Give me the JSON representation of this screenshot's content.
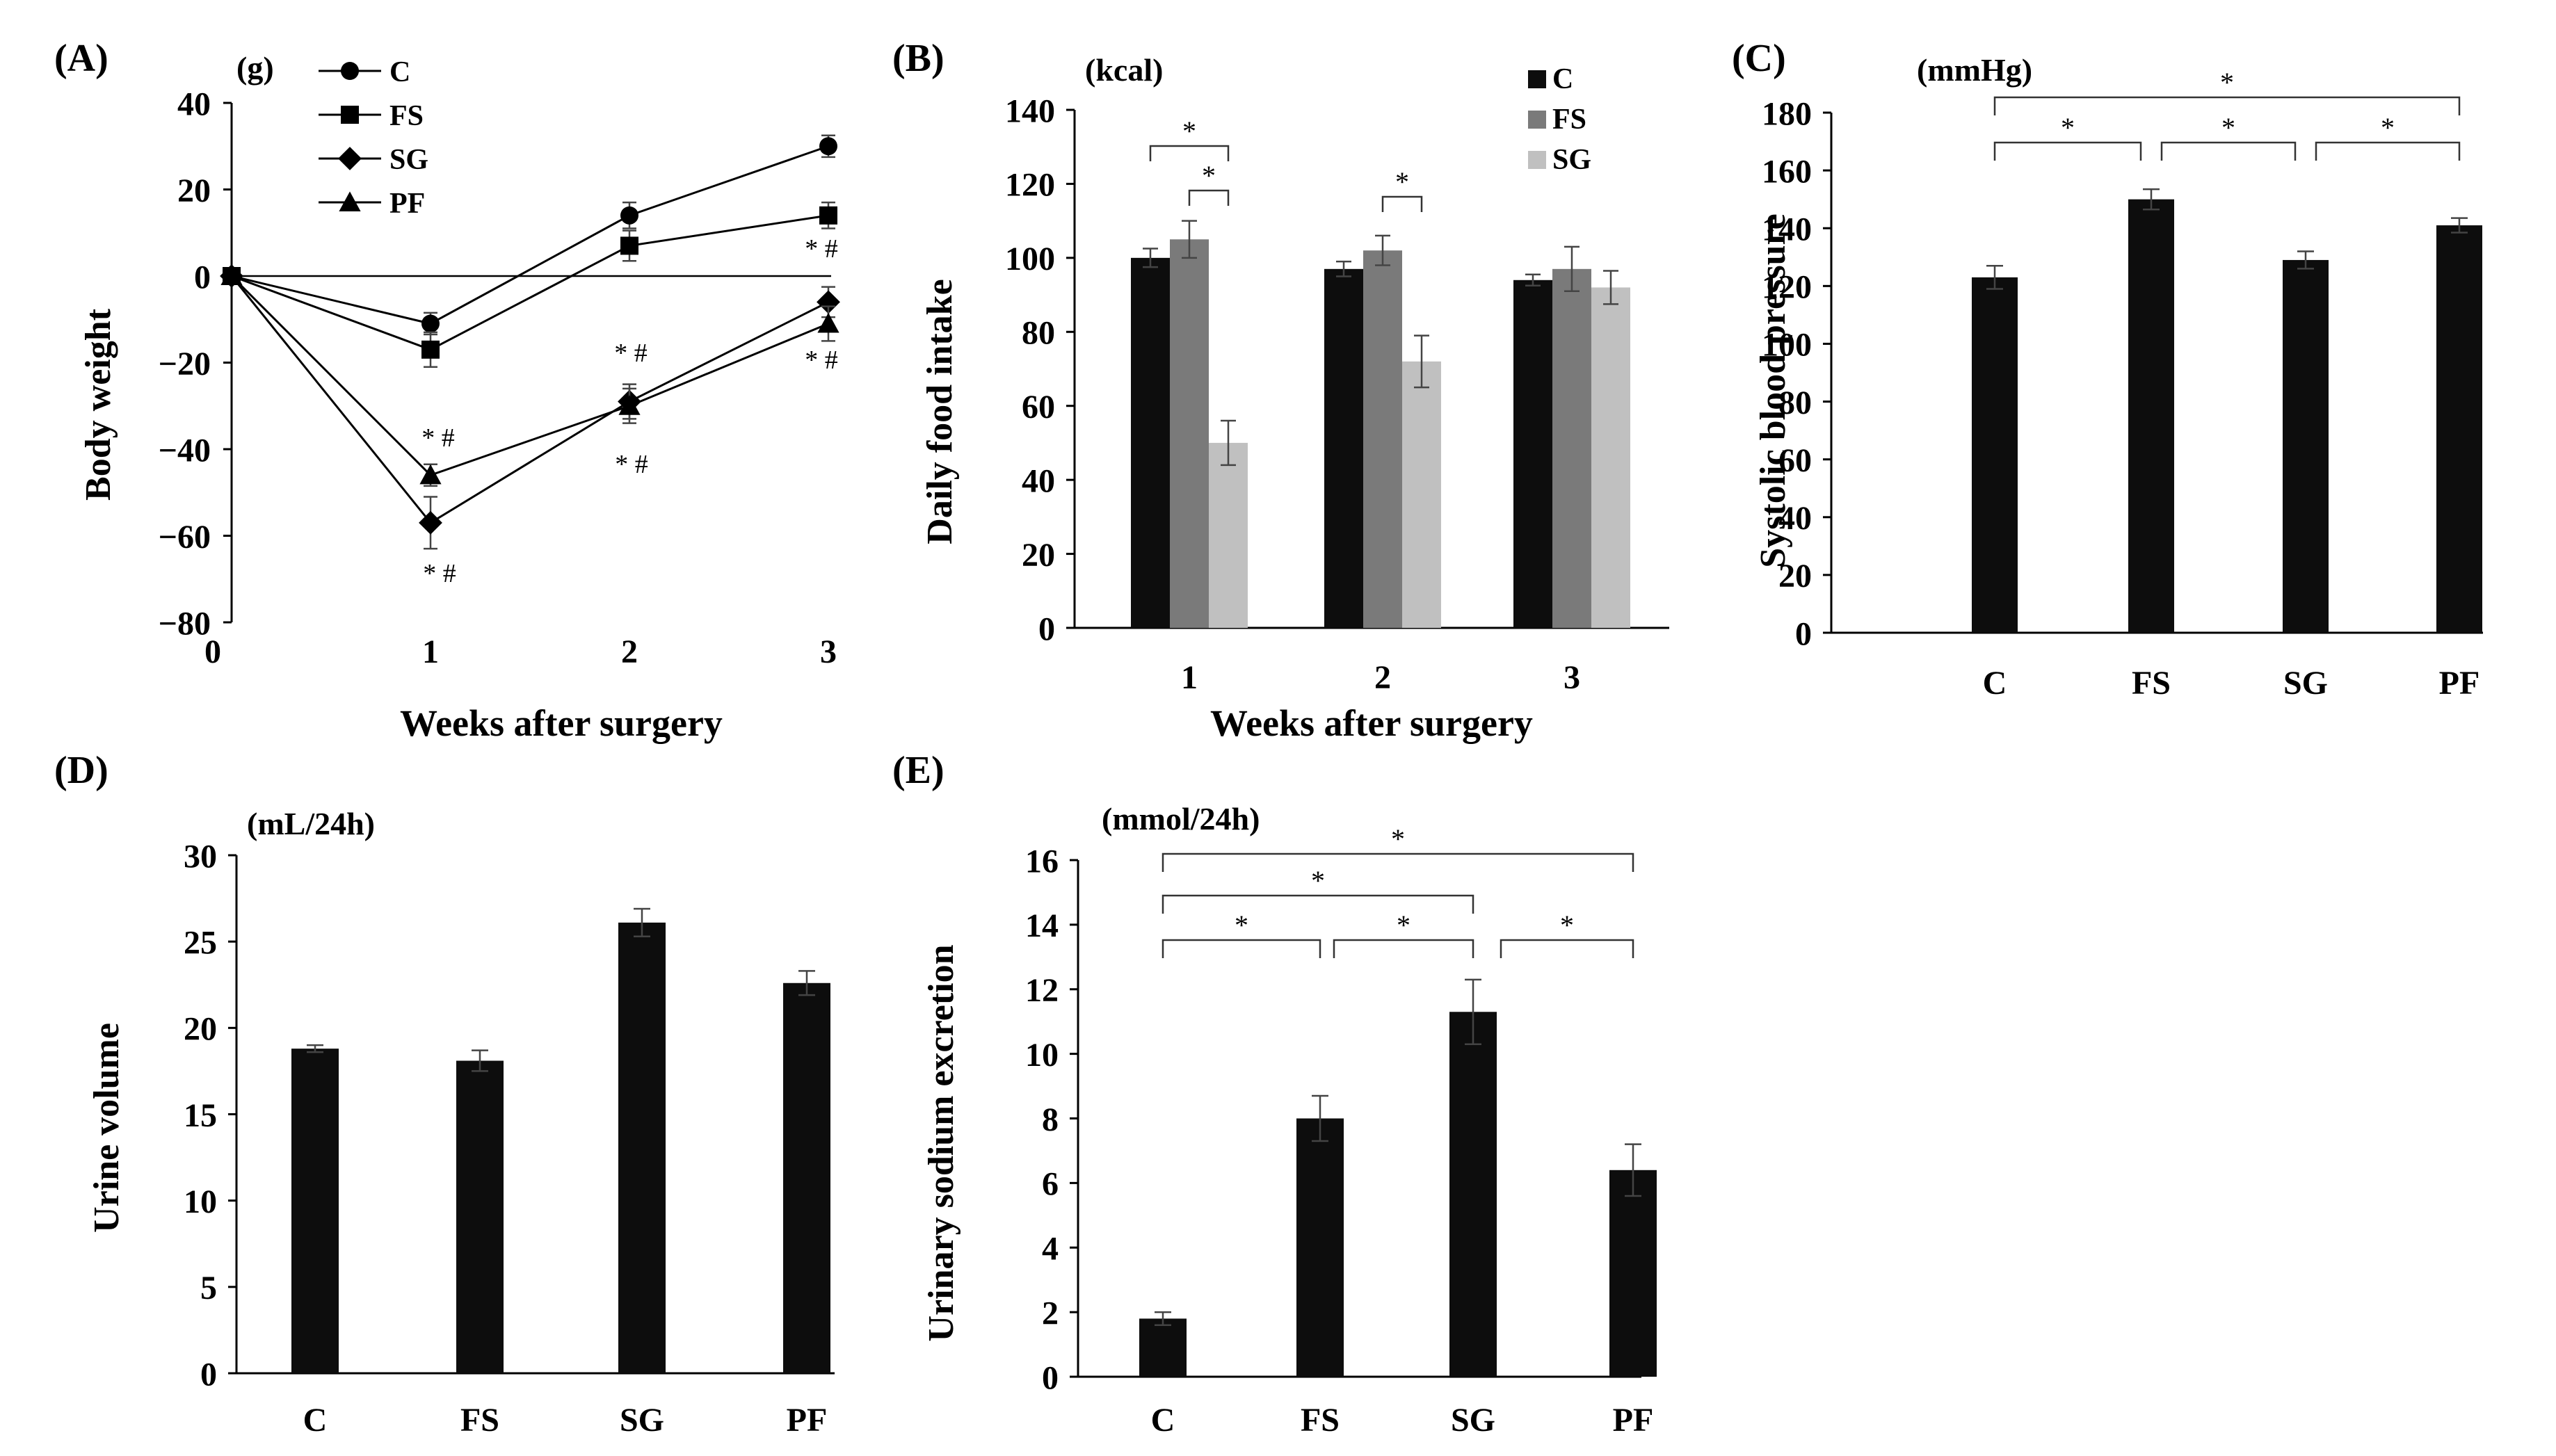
{
  "panels": {
    "A": {
      "letter": "(A)",
      "unit": "(g)",
      "ylabel": "Body weight",
      "xlabel": "Weeks after surgery"
    },
    "B": {
      "letter": "(B)",
      "unit": "(kcal)",
      "ylabel": "Daily food intake",
      "xlabel": "Weeks after surgery"
    },
    "C": {
      "letter": "(C)",
      "unit": "(mmHg)",
      "ylabel": "Systolic blood pressure"
    },
    "D": {
      "letter": "(D)",
      "unit": "(mL/24h)",
      "ylabel": "Urine volume"
    },
    "E": {
      "letter": "(E)",
      "unit": "(mmol/24h)",
      "ylabel": "Urinary sodium excretion"
    }
  },
  "chart_data": [
    {
      "panel": "A",
      "type": "line",
      "title": "",
      "xlabel": "Weeks after surgery",
      "ylabel": "Body weight",
      "unit": "(g)",
      "x": [
        0,
        1,
        2,
        3
      ],
      "xlim": [
        0,
        3
      ],
      "ylim": [
        -80,
        40
      ],
      "yticks": [
        -80,
        -60,
        -40,
        -20,
        0,
        20,
        40
      ],
      "xtick_labels": [
        "0",
        "1",
        "2",
        "3"
      ],
      "legend_position": "top-left",
      "series": [
        {
          "name": "C",
          "marker": "circle",
          "values": [
            0,
            -11,
            14,
            30
          ],
          "errors": [
            0,
            2.5,
            3,
            2.5
          ]
        },
        {
          "name": "FS",
          "marker": "square",
          "values": [
            0,
            -17,
            7,
            14
          ],
          "errors": [
            0,
            4,
            3.5,
            3
          ]
        },
        {
          "name": "SG",
          "marker": "diamond",
          "values": [
            0,
            -57,
            -29,
            -6
          ],
          "errors": [
            0,
            6,
            4,
            3.5
          ]
        },
        {
          "name": "PF",
          "marker": "triangle",
          "values": [
            0,
            -46,
            -30,
            -11
          ],
          "errors": [
            0,
            2.5,
            4,
            4
          ]
        }
      ],
      "annotations": [
        "* #",
        "* #",
        "* #",
        "* #",
        "* #",
        "* #"
      ]
    },
    {
      "panel": "B",
      "type": "bar",
      "title": "",
      "xlabel": "Weeks after surgery",
      "ylabel": "Daily food intake",
      "unit": "(kcal)",
      "categories": [
        "1",
        "2",
        "3"
      ],
      "ylim": [
        0,
        140
      ],
      "yticks": [
        0,
        20,
        40,
        60,
        80,
        100,
        120,
        140
      ],
      "legend_position": "top-right",
      "series": [
        {
          "name": "C",
          "color": "#0d0d0d",
          "values": [
            100,
            97,
            94
          ],
          "errors": [
            2.5,
            2,
            1.5
          ]
        },
        {
          "name": "FS",
          "color": "#7a7a7a",
          "values": [
            105,
            102,
            97
          ],
          "errors": [
            5,
            4,
            6
          ]
        },
        {
          "name": "SG",
          "color": "#c0c0c0",
          "values": [
            50,
            72,
            92
          ],
          "errors": [
            6,
            7,
            4.5
          ]
        }
      ],
      "significance": [
        "*",
        "*",
        "*"
      ]
    },
    {
      "panel": "C",
      "type": "bar",
      "title": "",
      "xlabel": "",
      "ylabel": "Systolic blood pressure",
      "unit": "(mmHg)",
      "categories": [
        "C",
        "FS",
        "SG",
        "PF"
      ],
      "values": [
        123,
        150,
        129,
        141
      ],
      "errors": [
        4,
        3.5,
        3,
        2.5
      ],
      "ylim": [
        0,
        180
      ],
      "yticks": [
        0,
        20,
        40,
        60,
        80,
        100,
        120,
        140,
        160,
        180
      ],
      "significance": [
        "*",
        "*",
        "*",
        "*"
      ]
    },
    {
      "panel": "D",
      "type": "bar",
      "title": "",
      "xlabel": "",
      "ylabel": "Urine volume",
      "unit": "(mL/24h)",
      "categories": [
        "C",
        "FS",
        "SG",
        "PF"
      ],
      "values": [
        18.8,
        18.1,
        26.1,
        22.6
      ],
      "errors": [
        0.2,
        0.6,
        0.8,
        0.7
      ],
      "ylim": [
        0,
        30
      ],
      "yticks": [
        0,
        5,
        10,
        15,
        20,
        25,
        30
      ]
    },
    {
      "panel": "E",
      "type": "bar",
      "title": "",
      "xlabel": "",
      "ylabel": "Urinary sodium excretion",
      "unit": "(mmol/24h)",
      "categories": [
        "C",
        "FS",
        "SG",
        "PF"
      ],
      "values": [
        1.8,
        8.0,
        11.3,
        6.4
      ],
      "errors": [
        0.2,
        0.7,
        1.0,
        0.8
      ],
      "ylim": [
        0,
        16
      ],
      "yticks": [
        0,
        2,
        4,
        6,
        8,
        10,
        12,
        14,
        16
      ],
      "significance": [
        "*",
        "*",
        "*",
        "*",
        "*"
      ]
    }
  ]
}
